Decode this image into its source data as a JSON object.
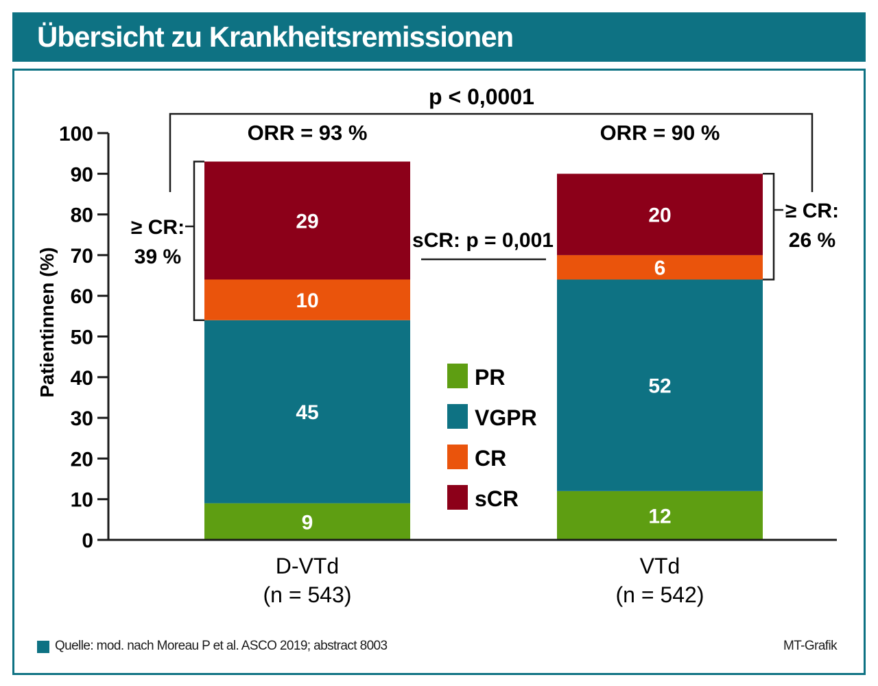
{
  "header": {
    "title": "Übersicht zu Krankheitsremissionen"
  },
  "chart_data": {
    "type": "bar",
    "stacked": true,
    "ylabel": "Patientinnen (%)",
    "ylim": [
      0,
      100
    ],
    "yticks": [
      0,
      10,
      20,
      30,
      40,
      50,
      60,
      70,
      80,
      90,
      100
    ],
    "grid": false,
    "legend_position": "center",
    "categories": [
      "D-VTd",
      "VTd"
    ],
    "category_sublabels": [
      "(n = 543)",
      "(n = 542)"
    ],
    "series": [
      {
        "name": "PR",
        "values": [
          9,
          12
        ],
        "color": "#5e9e12"
      },
      {
        "name": "VGPR",
        "values": [
          45,
          52
        ],
        "color": "#0e7283"
      },
      {
        "name": "CR",
        "values": [
          10,
          6
        ],
        "color": "#ea540c"
      },
      {
        "name": "sCR",
        "values": [
          29,
          20
        ],
        "color": "#8c0019"
      }
    ],
    "annotations": {
      "p_overall": "p < 0,0001",
      "orr": [
        "ORR = 93 %",
        "ORR = 90 %"
      ],
      "scr_p": "sCR: p = 0,001",
      "cr_left": [
        "≥ CR:",
        "39 %"
      ],
      "cr_right": [
        "≥ CR:",
        "26 %"
      ]
    }
  },
  "footer": {
    "source": "Quelle: mod. nach Moreau P et al. ASCO 2019; abstract 8003",
    "credit": "MT-Grafik"
  }
}
